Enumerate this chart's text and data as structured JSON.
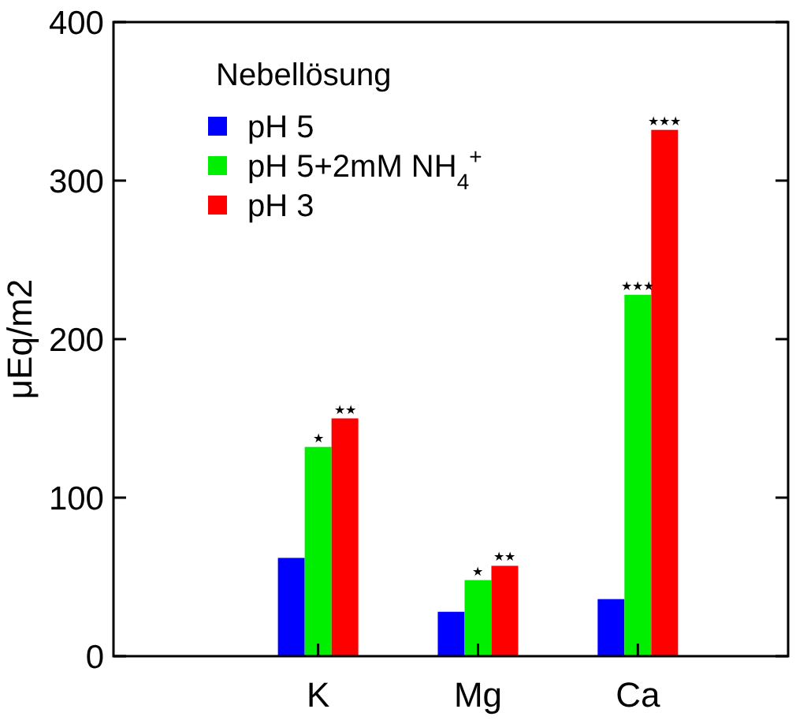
{
  "chart_data": {
    "type": "bar",
    "ylabel": "μEq/m2",
    "legend_title": "Nebellösung",
    "legend": "top left",
    "categories": [
      "K",
      "Mg",
      "Ca"
    ],
    "series": [
      {
        "name": "pH 5",
        "color": "#0000ff",
        "values": [
          62,
          28,
          36
        ]
      },
      {
        "name": "pH 5+2mM NH$_{4}$$^{+}$",
        "color": "#00ee00",
        "values": [
          132,
          48,
          228
        ]
      },
      {
        "name": "pH 3",
        "color": "#ff0000",
        "values": [
          150,
          57,
          332
        ]
      }
    ],
    "ylim": [
      0,
      400
    ],
    "yticks": [
      0,
      100,
      200,
      300,
      400
    ],
    "grid": false,
    "annotations": [
      "★",
      "★★",
      "★",
      "★★",
      "★★★",
      "★★★"
    ]
  }
}
